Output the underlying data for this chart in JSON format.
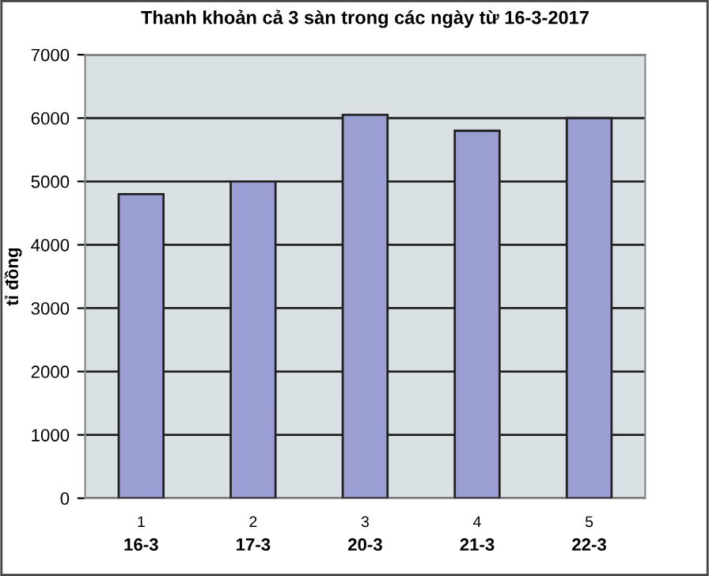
{
  "chart_data": {
    "type": "bar",
    "title": "Thanh khoản cả 3 sàn trong các ngày từ 16-3-2017",
    "ylabel": "tỉ đồng",
    "categories": [
      "1\n16-3",
      "2\n17-3",
      "3\n20-3",
      "4\n21-3",
      "5\n22-3"
    ],
    "values": [
      4800,
      5000,
      6050,
      5800,
      6000
    ],
    "color": "#9b9ed2",
    "ylim": [
      0,
      7000
    ],
    "yticks": [
      0,
      1000,
      2000,
      3000,
      4000,
      5000,
      6000,
      7000
    ],
    "grid": "y",
    "legend": false
  }
}
